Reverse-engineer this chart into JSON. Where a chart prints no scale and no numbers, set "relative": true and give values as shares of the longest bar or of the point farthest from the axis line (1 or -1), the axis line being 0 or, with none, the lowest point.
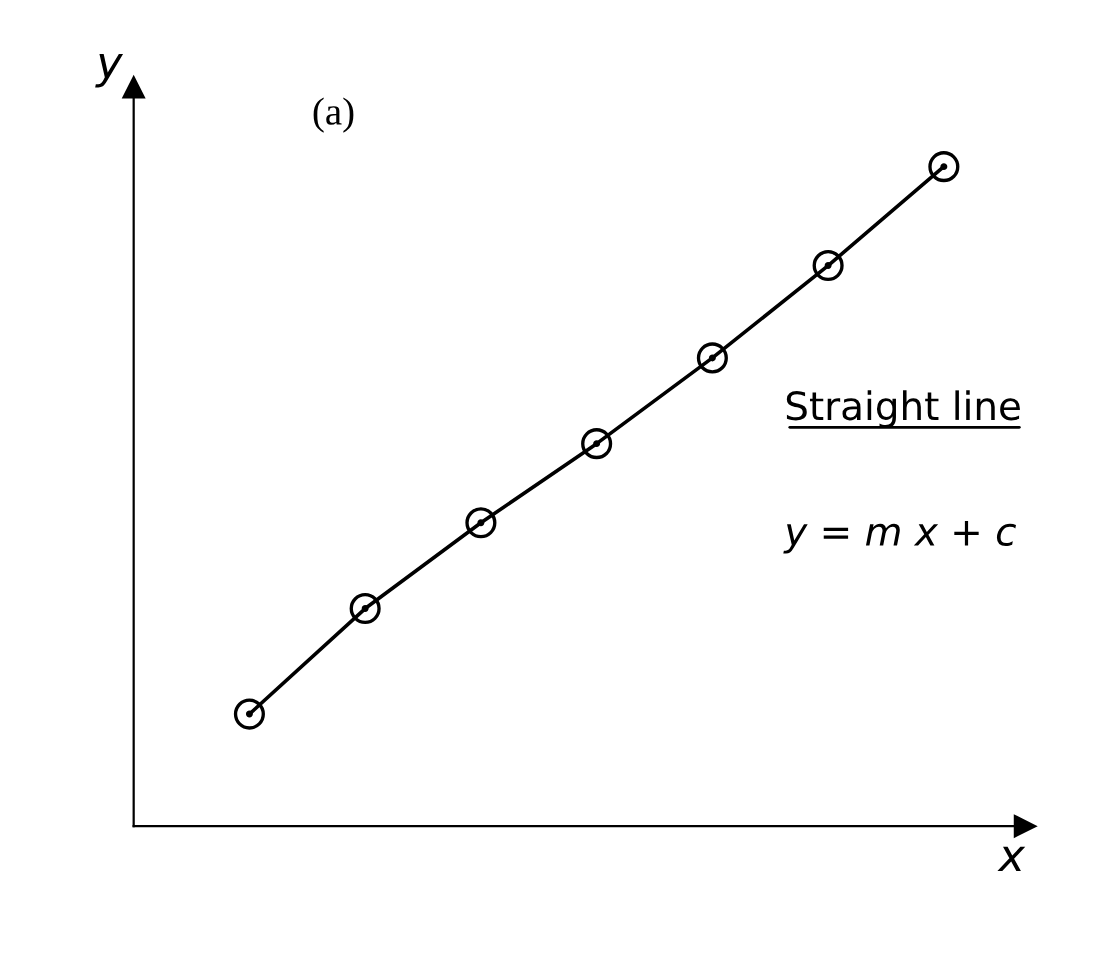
{
  "chart_data": {
    "type": "line",
    "relative": true,
    "xlabel": "x",
    "ylabel": "y",
    "categories": [
      null,
      null,
      null,
      null,
      null,
      null,
      null
    ],
    "series": [
      {
        "color": "#000000",
        "marker": "circle",
        "values": [
          0.17,
          0.33,
          0.46,
          0.58,
          0.71,
          0.85,
          1.0
        ]
      }
    ],
    "annotations": [
      "(a)",
      "Straight line",
      "y = m x + c"
    ],
    "tick_labels": false
  }
}
